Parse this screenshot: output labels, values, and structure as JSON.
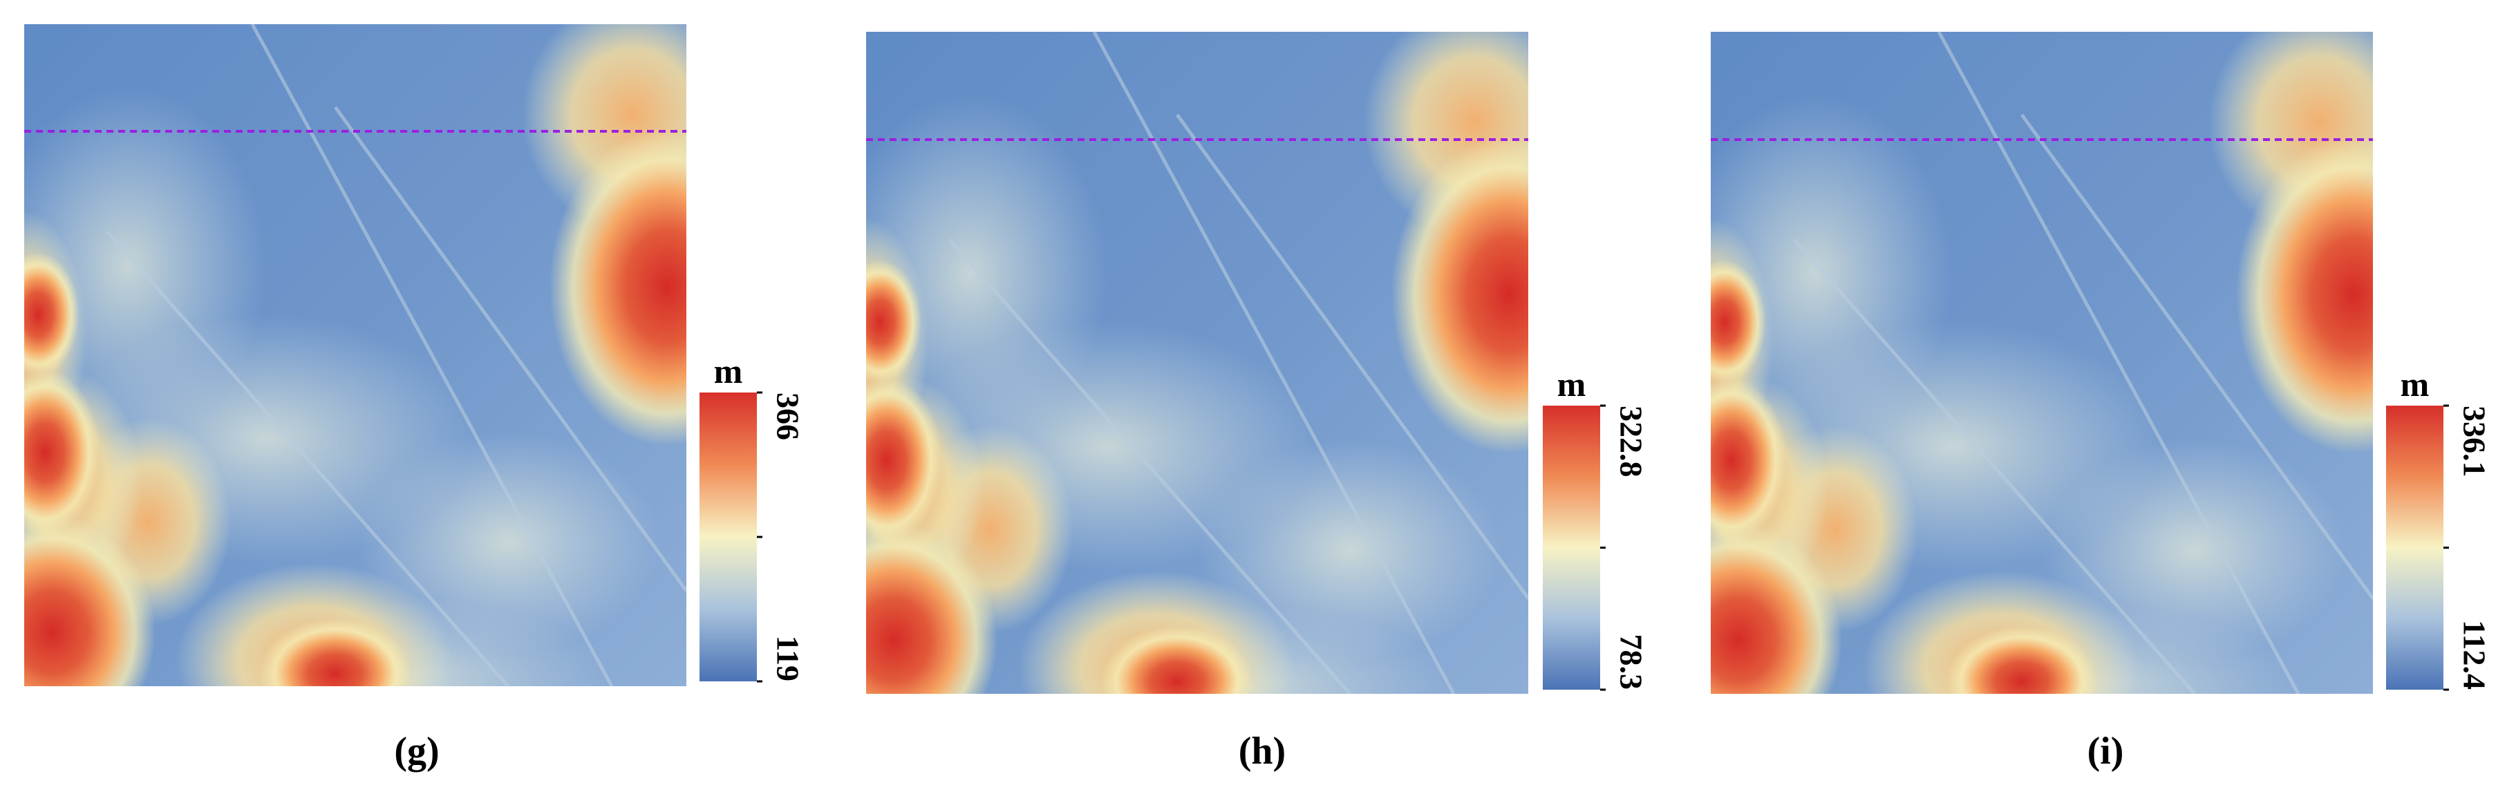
{
  "panels": [
    {
      "label": "(g)",
      "colorbar": {
        "unit": "m",
        "max": 366,
        "min": 119
      }
    },
    {
      "label": "(h)",
      "colorbar": {
        "unit": "m",
        "max": 322.8,
        "min": 78.3
      }
    },
    {
      "label": "(i)",
      "colorbar": {
        "unit": "m",
        "max": 336.1,
        "min": 112.4
      }
    }
  ]
}
